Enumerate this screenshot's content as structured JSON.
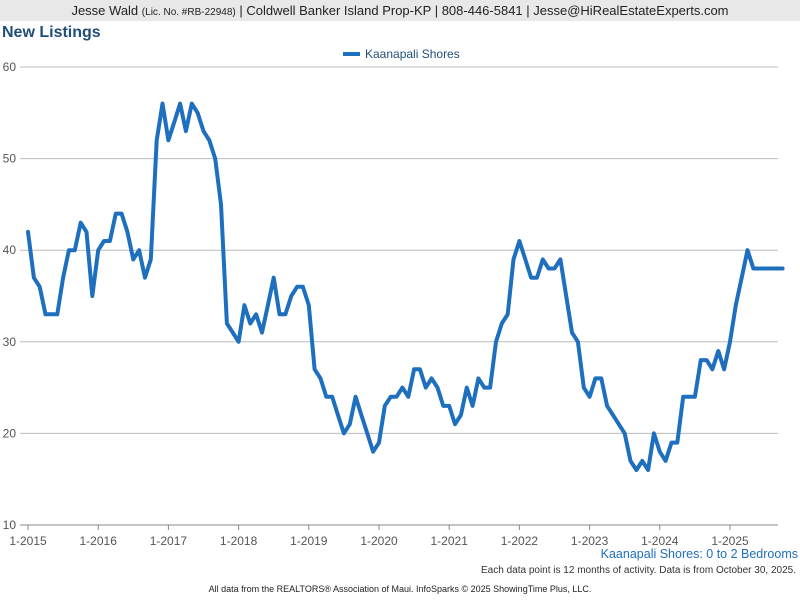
{
  "header": {
    "agent_name": "Jesse Wald",
    "license": "(Lic. No. #RB-22948)",
    "rest": "| Coldwell Banker Island Prop-KP | 808-446-5841 | Jesse@HiRealEstateExperts.com"
  },
  "page_title": "New Listings",
  "subtitle": "Kaanapali Shores: 0 to 2 Bedrooms",
  "footnote": "Each data point is 12 months of activity. Data is from October 30, 2025.",
  "footer": "All data from the REALTORS® Association of Maui. InfoSparks © 2025 ShowingTime Plus, LLC.",
  "colors": {
    "series": "#1f6fbf",
    "title": "#1f4e79",
    "grid": "#bbbbbb",
    "axis": "#888888"
  },
  "chart_data": {
    "type": "line",
    "title": "New Listings",
    "xlabel": "",
    "ylabel": "",
    "ylim": [
      10,
      60
    ],
    "yticks": [
      10,
      20,
      30,
      40,
      50,
      60
    ],
    "x_ticks": [
      "1-2015",
      "1-2016",
      "1-2017",
      "1-2018",
      "1-2019",
      "1-2020",
      "1-2021",
      "1-2022",
      "1-2023",
      "1-2024",
      "1-2025"
    ],
    "x_start": "2015-01",
    "x_end": "2025-10",
    "grid": true,
    "legend_position": "top-center",
    "series": [
      {
        "name": "Kaanapali Shores",
        "values": [
          42,
          37,
          36,
          33,
          33,
          33,
          37,
          40,
          40,
          43,
          42,
          35,
          40,
          41,
          41,
          44,
          44,
          42,
          39,
          40,
          37,
          39,
          52,
          56,
          52,
          54,
          56,
          53,
          56,
          55,
          53,
          52,
          50,
          45,
          32,
          31,
          30,
          34,
          32,
          33,
          31,
          34,
          37,
          33,
          33,
          35,
          36,
          36,
          34,
          27,
          26,
          24,
          24,
          22,
          20,
          21,
          24,
          22,
          20,
          18,
          19,
          23,
          24,
          24,
          25,
          24,
          27,
          27,
          25,
          26,
          25,
          23,
          23,
          21,
          22,
          25,
          23,
          26,
          25,
          25,
          30,
          32,
          33,
          39,
          41,
          39,
          37,
          37,
          39,
          38,
          38,
          39,
          35,
          31,
          30,
          25,
          24,
          26,
          26,
          23,
          22,
          21,
          20,
          17,
          16,
          17,
          16,
          20,
          18,
          17,
          19,
          19,
          24,
          24,
          24,
          28,
          28,
          27,
          29,
          27,
          30,
          34,
          37,
          40,
          38,
          38,
          38,
          38,
          38,
          38
        ]
      }
    ]
  }
}
